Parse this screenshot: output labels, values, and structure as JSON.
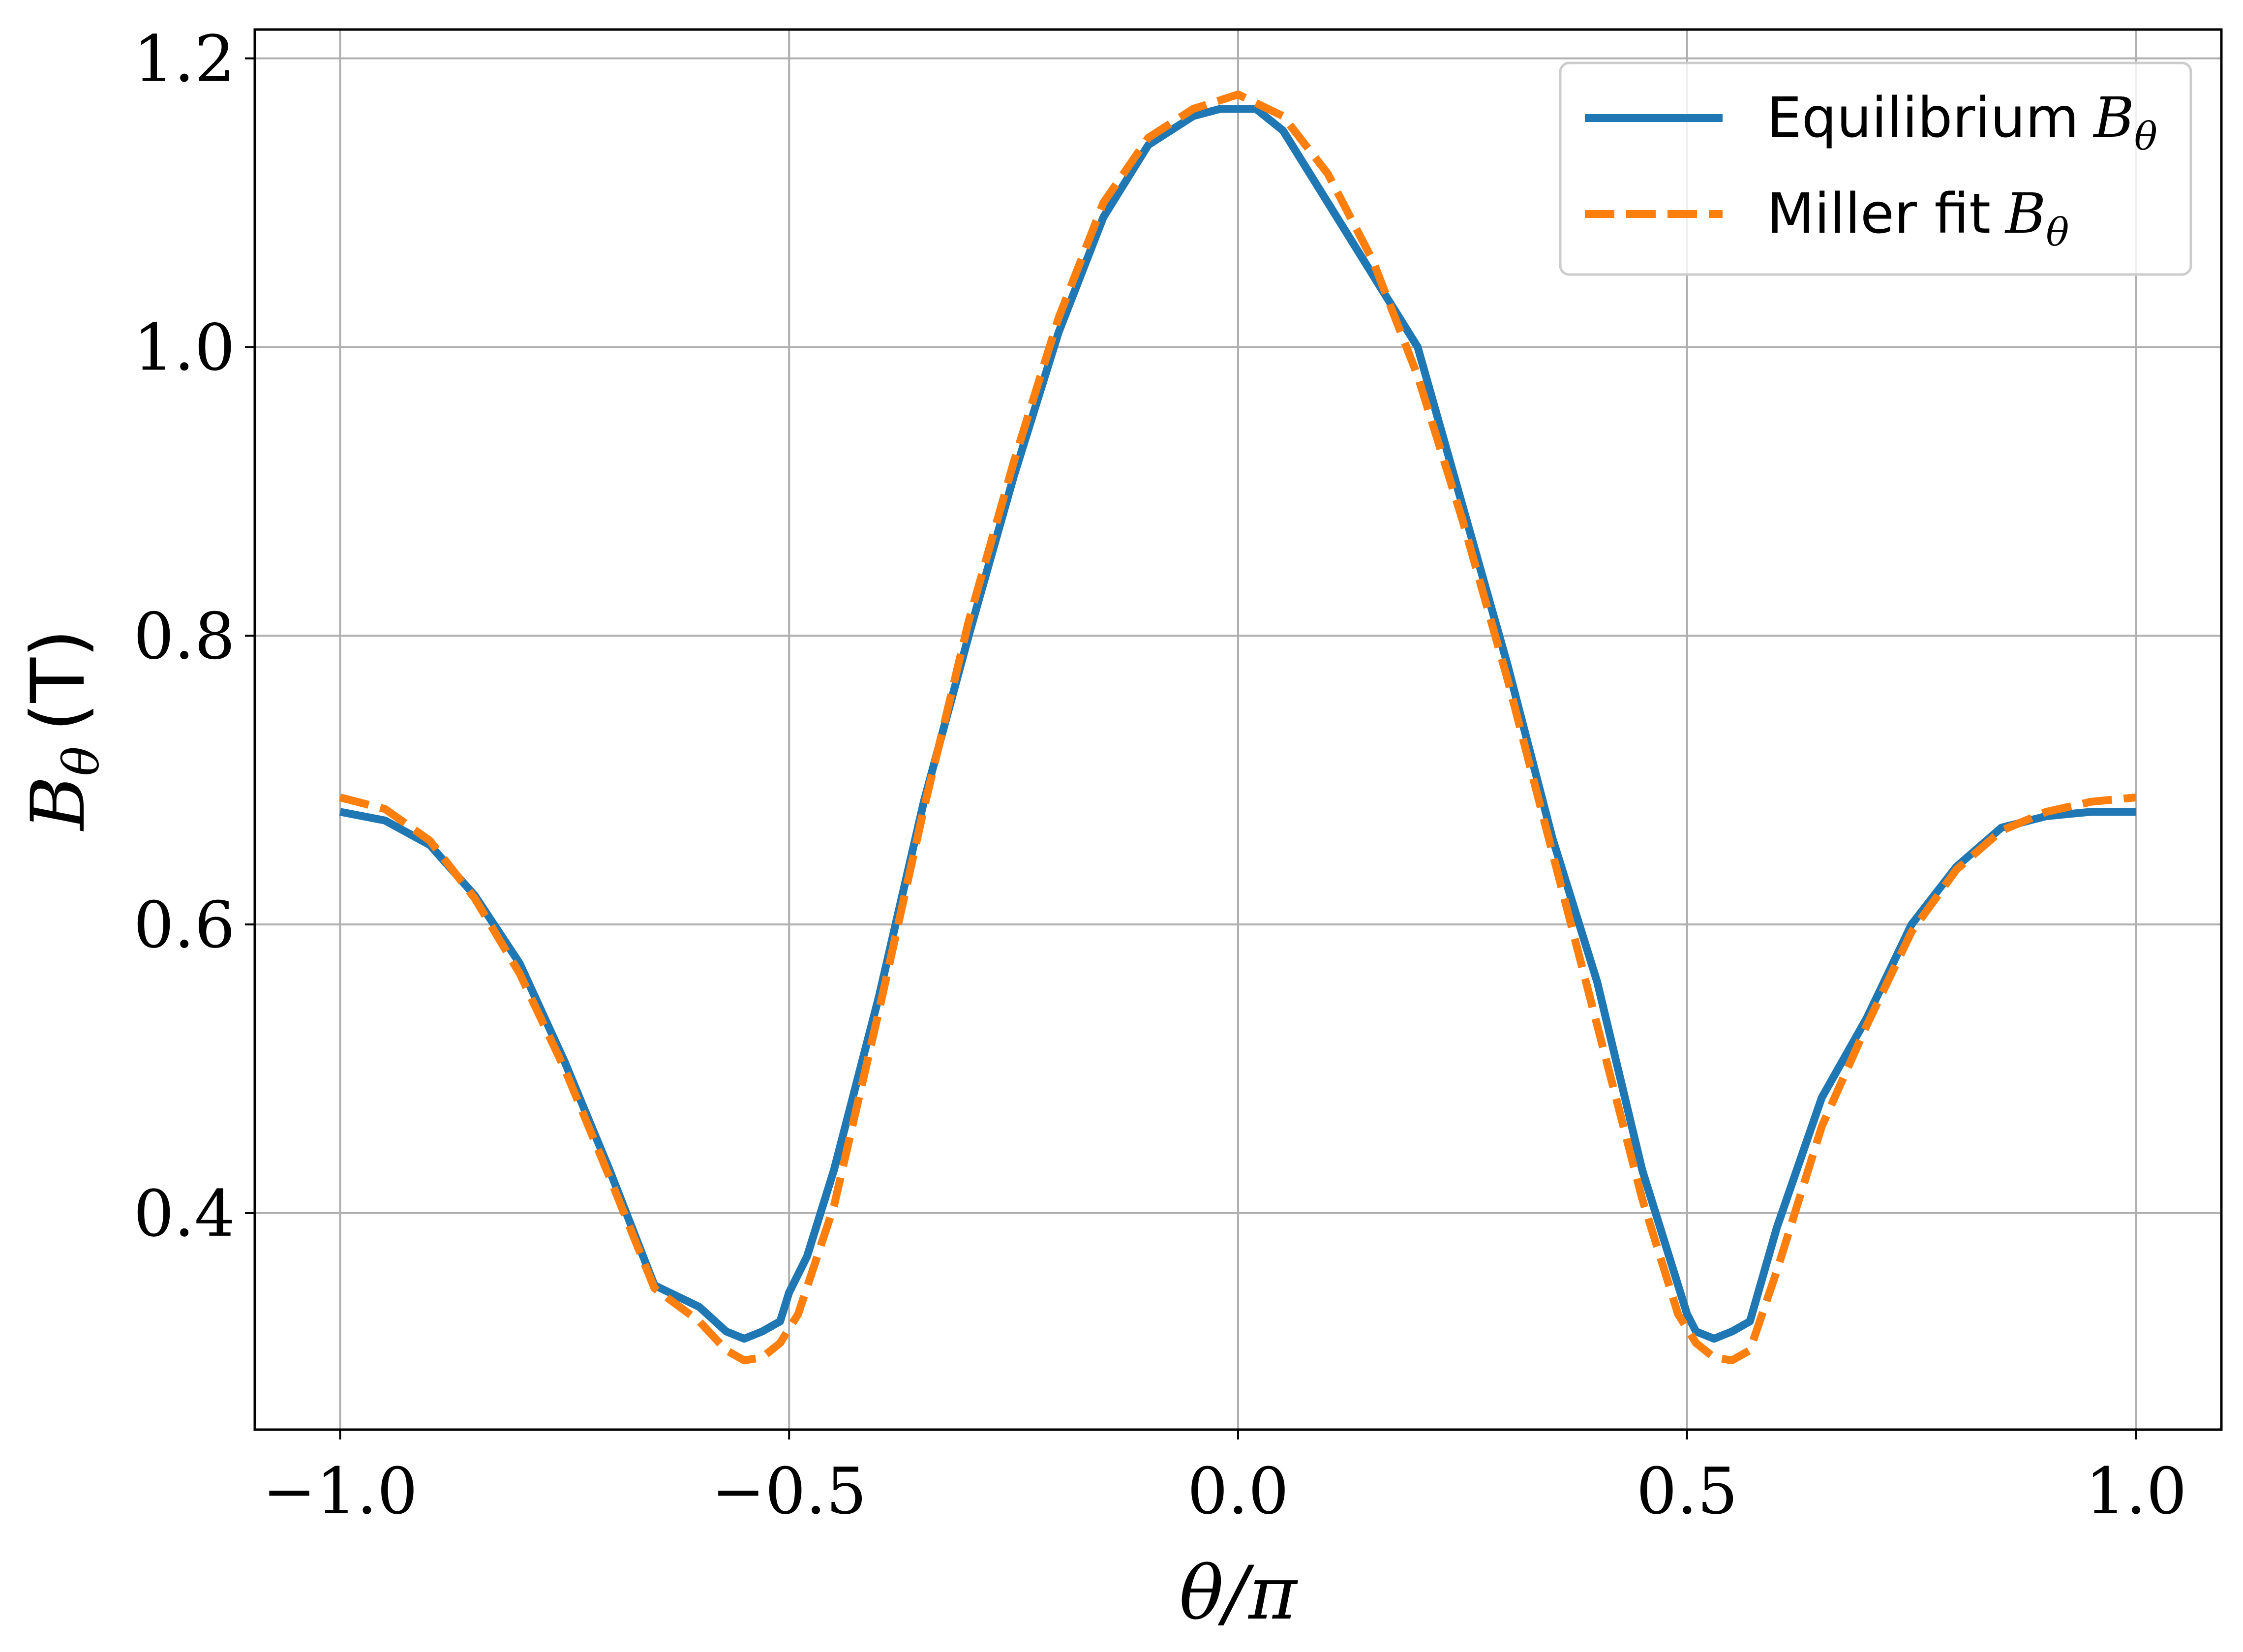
{
  "chart_data": {
    "type": "line",
    "xlabel": "θ/π",
    "ylabel": "B",
    "ylabel_subscript": "θ",
    "ylabel_unit": "(T)",
    "xlim": [
      -1.095,
      1.095
    ],
    "ylim": [
      0.25,
      1.22
    ],
    "grid": true,
    "legend_position": "top-right",
    "x_ticks": [
      -1.0,
      -0.5,
      0.0,
      0.5,
      1.0
    ],
    "x_tick_labels": [
      "−1.0",
      "−0.5",
      "0.0",
      "0.5",
      "1.0"
    ],
    "y_ticks": [
      0.4,
      0.6,
      0.8,
      1.0,
      1.2
    ],
    "y_tick_labels": [
      "0.4",
      "0.6",
      "0.8",
      "1.0",
      "1.2"
    ],
    "series": [
      {
        "name": "Equilibrium",
        "name_math": "B",
        "name_math_sub": "θ",
        "color": "#1f77b4",
        "style": "solid",
        "x": [
          -1.0,
          -0.95,
          -0.9,
          -0.85,
          -0.8,
          -0.75,
          -0.7,
          -0.65,
          -0.6,
          -0.57,
          -0.55,
          -0.53,
          -0.51,
          -0.5,
          -0.48,
          -0.45,
          -0.4,
          -0.35,
          -0.3,
          -0.25,
          -0.2,
          -0.15,
          -0.1,
          -0.05,
          -0.02,
          0.0,
          0.02,
          0.05,
          0.1,
          0.15,
          0.2,
          0.25,
          0.3,
          0.35,
          0.4,
          0.45,
          0.48,
          0.5,
          0.51,
          0.53,
          0.55,
          0.57,
          0.6,
          0.65,
          0.7,
          0.75,
          0.8,
          0.85,
          0.9,
          0.95,
          1.0
        ],
        "y": [
          0.678,
          0.672,
          0.655,
          0.62,
          0.573,
          0.505,
          0.43,
          0.35,
          0.335,
          0.318,
          0.313,
          0.318,
          0.325,
          0.345,
          0.37,
          0.43,
          0.55,
          0.685,
          0.8,
          0.91,
          1.01,
          1.09,
          1.14,
          1.16,
          1.165,
          1.165,
          1.165,
          1.15,
          1.1,
          1.05,
          1.0,
          0.89,
          0.78,
          0.66,
          0.56,
          0.43,
          0.37,
          0.33,
          0.318,
          0.313,
          0.318,
          0.325,
          0.39,
          0.48,
          0.535,
          0.6,
          0.64,
          0.667,
          0.675,
          0.678,
          0.678
        ]
      },
      {
        "name": "Miller fit",
        "name_math": "B",
        "name_math_sub": "θ",
        "color": "#ff7f0e",
        "style": "dashed",
        "x": [
          -1.0,
          -0.95,
          -0.9,
          -0.85,
          -0.8,
          -0.75,
          -0.7,
          -0.65,
          -0.6,
          -0.57,
          -0.55,
          -0.53,
          -0.51,
          -0.49,
          -0.45,
          -0.4,
          -0.35,
          -0.3,
          -0.25,
          -0.2,
          -0.15,
          -0.1,
          -0.05,
          0.0,
          0.05,
          0.1,
          0.15,
          0.2,
          0.25,
          0.3,
          0.35,
          0.4,
          0.45,
          0.49,
          0.51,
          0.53,
          0.55,
          0.57,
          0.6,
          0.65,
          0.7,
          0.75,
          0.8,
          0.85,
          0.9,
          0.95,
          1.0
        ],
        "y": [
          0.688,
          0.68,
          0.658,
          0.618,
          0.566,
          0.5,
          0.425,
          0.348,
          0.325,
          0.305,
          0.298,
          0.3,
          0.31,
          0.33,
          0.405,
          0.54,
          0.68,
          0.81,
          0.92,
          1.02,
          1.1,
          1.145,
          1.165,
          1.175,
          1.16,
          1.12,
          1.06,
          0.98,
          0.88,
          0.77,
          0.65,
          0.53,
          0.41,
          0.33,
          0.31,
          0.3,
          0.298,
          0.305,
          0.36,
          0.46,
          0.53,
          0.595,
          0.638,
          0.665,
          0.678,
          0.685,
          0.688
        ]
      }
    ]
  }
}
